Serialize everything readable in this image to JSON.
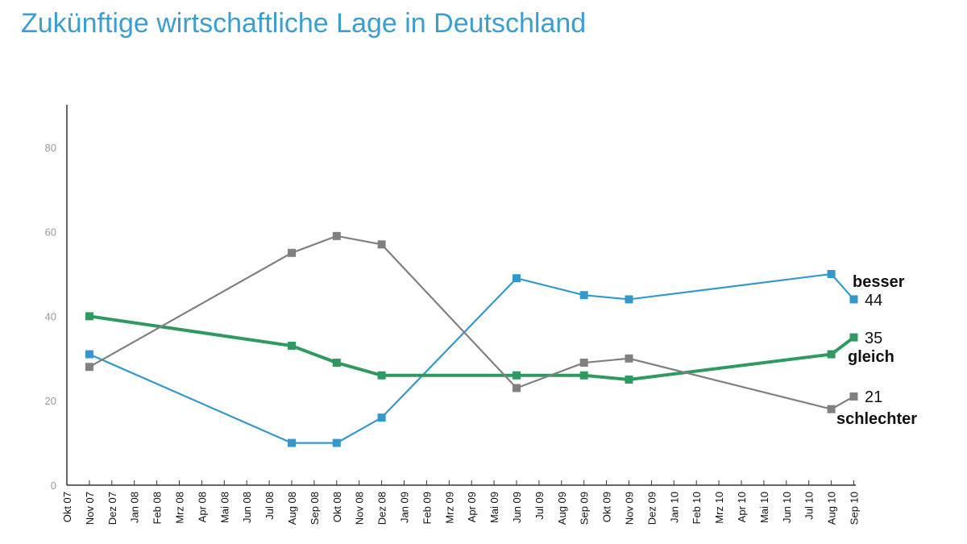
{
  "title": "Zukünftige wirtschaftliche Lage in Deutschland",
  "chart_data": {
    "type": "line",
    "title": "Zukünftige wirtschaftliche Lage in Deutschland",
    "xlabel": "",
    "ylabel": "",
    "ylim": [
      0,
      90
    ],
    "yticks": [
      0,
      20,
      40,
      60,
      80
    ],
    "grid": false,
    "categories": [
      "Okt 07",
      "Nov 07",
      "Dez 07",
      "Jan 08",
      "Feb 08",
      "Mrz 08",
      "Apr 08",
      "Mai 08",
      "Jun 08",
      "Jul 08",
      "Aug 08",
      "Sep 08",
      "Okt 08",
      "Nov 08",
      "Dez 08",
      "Jan 09",
      "Feb 09",
      "Mrz 09",
      "Apr 09",
      "Mai 09",
      "Jun 09",
      "Jul 09",
      "Aug 09",
      "Sep 09",
      "Okt 09",
      "Nov 09",
      "Dez 09",
      "Jan 10",
      "Feb 10",
      "Mrz 10",
      "Apr 10",
      "Mai 10",
      "Jun 10",
      "Jul 10",
      "Aug 10",
      "Sep 10"
    ],
    "series": [
      {
        "name": "besser",
        "color": "#3399cc",
        "end_label": "44",
        "x": [
          "Nov 07",
          "Aug 08",
          "Okt 08",
          "Dez 08",
          "Jun 09",
          "Sep 09",
          "Nov 09",
          "Aug 10",
          "Sep 10"
        ],
        "values": [
          31,
          10,
          10,
          16,
          49,
          45,
          44,
          50,
          44
        ]
      },
      {
        "name": "gleich",
        "color": "#2e9960",
        "end_label": "35",
        "x": [
          "Nov 07",
          "Aug 08",
          "Okt 08",
          "Dez 08",
          "Jun 09",
          "Sep 09",
          "Nov 09",
          "Aug 10",
          "Sep 10"
        ],
        "values": [
          40,
          33,
          29,
          26,
          26,
          26,
          25,
          31,
          35
        ]
      },
      {
        "name": "schlechter",
        "color": "#808080",
        "end_label": "21",
        "x": [
          "Nov 07",
          "Aug 08",
          "Okt 08",
          "Dez 08",
          "Jun 09",
          "Sep 09",
          "Nov 09",
          "Aug 10",
          "Sep 10"
        ],
        "values": [
          28,
          55,
          59,
          57,
          23,
          29,
          30,
          18,
          21
        ]
      }
    ]
  }
}
